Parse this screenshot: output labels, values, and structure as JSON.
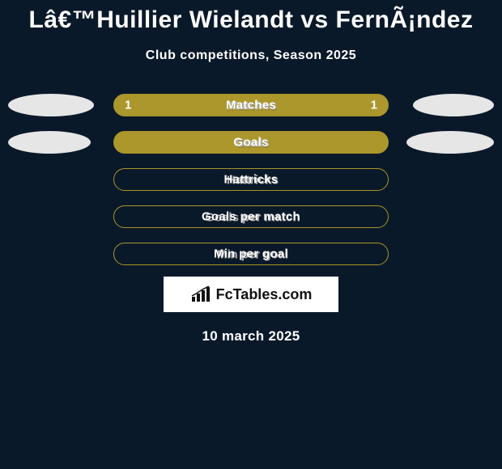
{
  "background_color": "#0a1929",
  "title": "Lâ€™Huillier Wielandt vs FernÃ¡ndez",
  "title_fontsize": 30,
  "title_color": "#ffffff",
  "subtitle": "Club competitions, Season 2025",
  "subtitle_fontsize": 16,
  "subtitle_color": "#ffffff",
  "footer_brand": "FcTables.com",
  "date_text": "10 march 2025",
  "bar_border_color": "#a89429",
  "bar_fill_full": "#ac972d",
  "bar_fill_empty": "#a89429",
  "pellet_color": "#e6e6e6",
  "rows": [
    {
      "label": "Matches",
      "left_value": "1",
      "right_value": "1",
      "bar_fill": "#ac972d",
      "bar_border": "#a89429",
      "has_border_only": false,
      "pellet_left_width": 106,
      "pellet_right_width": 100
    },
    {
      "label": "Goals",
      "left_value": "",
      "right_value": "",
      "bar_fill": "#ac972d",
      "bar_border": "#a89429",
      "has_border_only": false,
      "pellet_left_width": 102,
      "pellet_right_width": 108
    },
    {
      "label": "Hattricks",
      "left_value": "",
      "right_value": "",
      "bar_fill": "transparent",
      "bar_border": "#a89429",
      "has_border_only": true,
      "pellet_left_width": 0,
      "pellet_right_width": 0
    },
    {
      "label": "Goals per match",
      "left_value": "",
      "right_value": "",
      "bar_fill": "transparent",
      "bar_border": "#a89429",
      "has_border_only": true,
      "pellet_left_width": 0,
      "pellet_right_width": 0
    },
    {
      "label": "Min per goal",
      "left_value": "",
      "right_value": "",
      "bar_fill": "transparent",
      "bar_border": "#a89429",
      "has_border_only": true,
      "pellet_left_width": 0,
      "pellet_right_width": 0
    }
  ]
}
